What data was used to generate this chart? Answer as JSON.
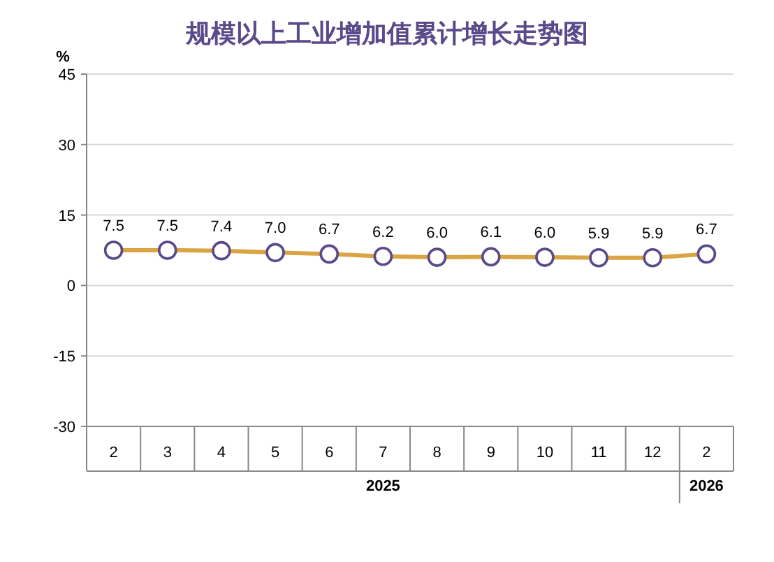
{
  "chart_data": {
    "type": "line",
    "title": "规模以上工业增加值累计增长走势图",
    "ylabel": "%",
    "categories": [
      "2",
      "3",
      "4",
      "5",
      "6",
      "7",
      "8",
      "9",
      "10",
      "11",
      "12",
      "2"
    ],
    "series": [
      {
        "color": "#d9a441",
        "values": [
          7.5,
          7.5,
          7.4,
          7.0,
          6.7,
          6.2,
          6.0,
          6.1,
          6.0,
          5.9,
          5.9,
          6.7
        ]
      }
    ],
    "value_labels": [
      "7.5",
      "7.5",
      "7.4",
      "7.0",
      "6.7",
      "6.2",
      "6.0",
      "6.1",
      "6.0",
      "5.9",
      "5.9",
      "6.7"
    ],
    "ylim": [
      -30,
      45
    ],
    "yticks": [
      -30,
      -15,
      0,
      15,
      30,
      45
    ],
    "grid": "y",
    "marker": "circle",
    "annotations": [
      "2025",
      "2026"
    ]
  }
}
